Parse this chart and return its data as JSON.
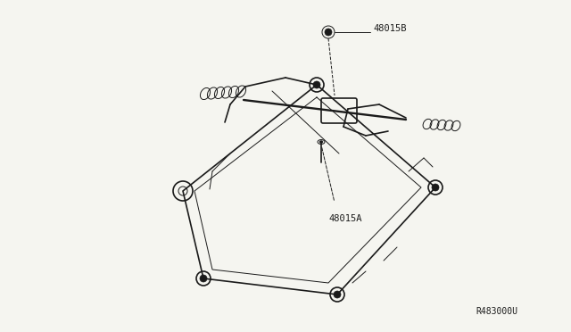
{
  "bg_color": "#f5f5f0",
  "line_color": "#1a1a1a",
  "label_48015B": "48015B",
  "label_48015A": "48015A",
  "ref_code": "R483000U",
  "fig_width": 6.4,
  "fig_height": 3.72,
  "dpi": 100,
  "label_fontsize": 7.5,
  "ref_fontsize": 7.0,
  "font_family": "monospace"
}
